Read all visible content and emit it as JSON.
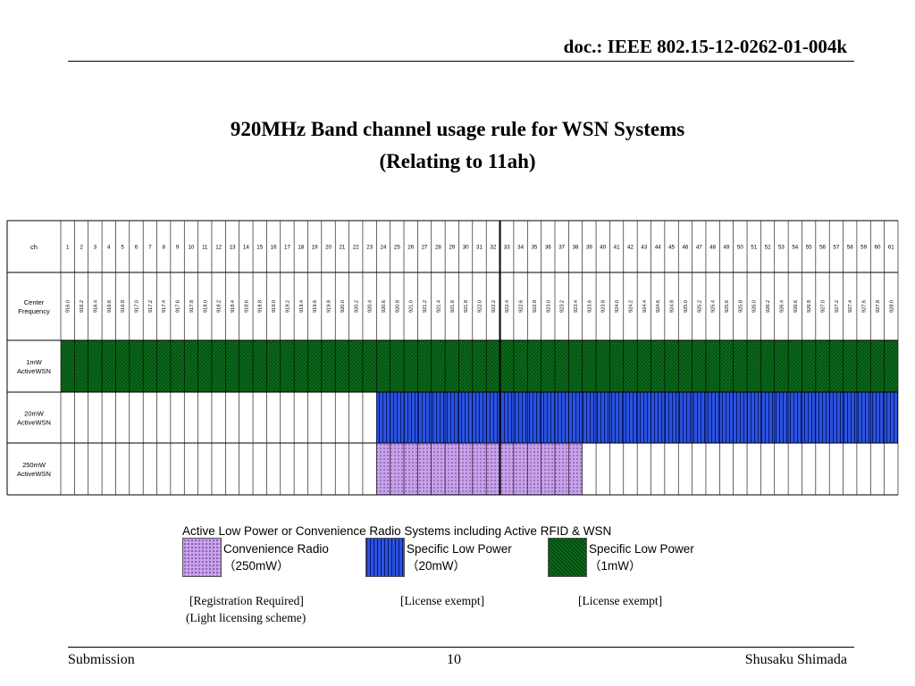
{
  "header": {
    "doc_id": "doc.: IEEE 802.15-12-0262-01-004k"
  },
  "title": {
    "line1": "920MHz Band channel usage rule for WSN Systems",
    "line2": "(Relating to 11ah)"
  },
  "table": {
    "row_labels": [
      [
        "ch"
      ],
      [
        "Center",
        "Frequency"
      ],
      [
        "1mW",
        "ActiveWSN"
      ],
      [
        "20mW",
        "ActiveWSN"
      ],
      [
        "250mW",
        "ActiveWSN"
      ]
    ],
    "channels": [
      1,
      2,
      3,
      4,
      5,
      6,
      7,
      8,
      9,
      10,
      11,
      12,
      13,
      14,
      15,
      16,
      17,
      18,
      19,
      20,
      21,
      22,
      23,
      24,
      25,
      26,
      27,
      28,
      29,
      30,
      31,
      32,
      33,
      34,
      35,
      36,
      37,
      38,
      39,
      40,
      41,
      42,
      43,
      44,
      45,
      46,
      47,
      48,
      49,
      50,
      51,
      52,
      53,
      54,
      55,
      56,
      57,
      58,
      59,
      60,
      61
    ],
    "frequencies": [
      "916.0",
      "916.2",
      "916.4",
      "916.6",
      "916.8",
      "917.0",
      "917.2",
      "917.4",
      "917.6",
      "917.8",
      "918.0",
      "918.2",
      "918.4",
      "918.6",
      "918.8",
      "919.0",
      "919.2",
      "919.4",
      "919.6",
      "919.8",
      "920.0",
      "920.2",
      "920.4",
      "920.6",
      "920.8",
      "921.0",
      "921.2",
      "921.4",
      "921.6",
      "921.8",
      "922.0",
      "922.2",
      "922.4",
      "922.6",
      "922.8",
      "923.0",
      "923.2",
      "923.4",
      "923.6",
      "923.8",
      "924.0",
      "924.2",
      "924.4",
      "924.6",
      "924.8",
      "925.0",
      "925.2",
      "925.4",
      "925.6",
      "925.8",
      "926.0",
      "926.2",
      "926.4",
      "926.6",
      "926.8",
      "927.0",
      "927.2",
      "927.4",
      "927.6",
      "927.8",
      "928.0"
    ],
    "allocations": {
      "1mw": {
        "first_channel": 1,
        "last_channel": 61
      },
      "20mw": {
        "first_channel": 24,
        "last_channel": 61
      },
      "250mw": {
        "first_channel": 24,
        "last_channel": 38
      }
    }
  },
  "legend": {
    "heading": "Active Low Power or Convenience Radio Systems including Active RFID & WSN",
    "items": [
      {
        "line1": "Convenience Radio",
        "line2": "（250mW）",
        "note": "[Registration Required]",
        "note2": "(Light licensing scheme)"
      },
      {
        "line1": "Specific Low Power",
        "line2": "（20mW）",
        "note": "[License exempt]"
      },
      {
        "line1": "Specific Low Power",
        "line2": "（1mW）",
        "note": "[License exempt]"
      }
    ]
  },
  "footer": {
    "left": "Submission",
    "center": "10",
    "right": "Shusaku Shimada"
  }
}
